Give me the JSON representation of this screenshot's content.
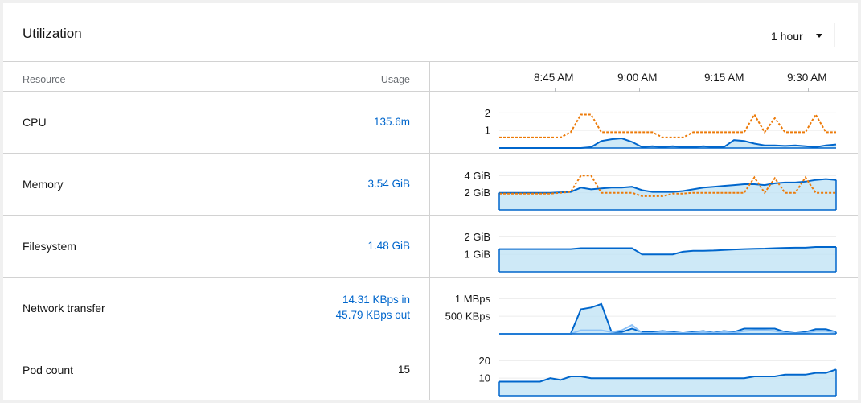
{
  "card": {
    "title": "Utilization",
    "duration": {
      "selected": "1 hour"
    }
  },
  "table": {
    "col_resource": "Resource",
    "col_usage": "Usage",
    "time_labels": [
      "8:45 AM",
      "9:00 AM",
      "9:15 AM",
      "9:30 AM"
    ]
  },
  "rows": [
    {
      "name": "CPU",
      "usage": "135.6m"
    },
    {
      "name": "Memory",
      "usage": "3.54 GiB"
    },
    {
      "name": "Filesystem",
      "usage": "1.48 GiB"
    },
    {
      "name": "Network transfer",
      "usage_in": "14.31 KBps in",
      "usage_out": "45.79 KBps out"
    },
    {
      "name": "Pod count",
      "usage": "15"
    }
  ],
  "colors": {
    "usage_line": "#0066cc",
    "usage_fill": "#bee1f4",
    "limit_line": "#ec7a08",
    "secondary_line": "#8bc1f7",
    "link": "#0066cc"
  },
  "chart_data": [
    {
      "type": "area",
      "id": "cpu",
      "yticks": [
        "1",
        "2"
      ],
      "ylim": [
        0,
        2.2
      ],
      "x": [
        "8:30",
        "8:33",
        "8:36",
        "8:38",
        "8:40",
        "8:41",
        "8:42",
        "8:44",
        "8:46",
        "8:48",
        "8:50",
        "8:52",
        "8:54",
        "8:56",
        "8:58",
        "9:00",
        "9:02",
        "9:04",
        "9:06",
        "9:08",
        "9:10",
        "9:12",
        "9:14",
        "9:16",
        "9:18",
        "9:20",
        "9:22",
        "9:24",
        "9:26",
        "9:28",
        "9:30",
        "9:32",
        "9:34",
        "9:36"
      ],
      "series": [
        {
          "role": "usage",
          "values": [
            0,
            0,
            0,
            0,
            0,
            0,
            0,
            0,
            0,
            0.05,
            0.4,
            0.5,
            0.55,
            0.35,
            0.05,
            0.1,
            0.05,
            0.1,
            0.05,
            0.05,
            0.1,
            0.05,
            0.05,
            0.45,
            0.4,
            0.25,
            0.15,
            0.15,
            0.12,
            0.15,
            0.1,
            0.05,
            0.15,
            0.2
          ]
        },
        {
          "role": "limit",
          "values": [
            0.6,
            0.6,
            0.6,
            0.6,
            0.6,
            0.6,
            0.6,
            0.9,
            1.9,
            1.9,
            0.9,
            0.9,
            0.9,
            0.9,
            0.9,
            0.9,
            0.6,
            0.6,
            0.6,
            0.9,
            0.9,
            0.9,
            0.9,
            0.9,
            0.9,
            1.9,
            0.9,
            1.7,
            0.9,
            0.9,
            0.9,
            1.9,
            0.9,
            0.9
          ]
        }
      ]
    },
    {
      "type": "area",
      "id": "memory",
      "yticks": [
        "2 GiB",
        "4 GiB"
      ],
      "ylim": [
        0,
        4.5
      ],
      "x": [
        "8:30",
        "8:33",
        "8:36",
        "8:38",
        "8:40",
        "8:41",
        "8:42",
        "8:44",
        "8:46",
        "8:48",
        "8:50",
        "8:52",
        "8:54",
        "8:56",
        "8:58",
        "9:00",
        "9:02",
        "9:04",
        "9:06",
        "9:08",
        "9:10",
        "9:12",
        "9:14",
        "9:16",
        "9:18",
        "9:20",
        "9:22",
        "9:24",
        "9:26",
        "9:28",
        "9:30",
        "9:32",
        "9:34",
        "9:36"
      ],
      "series": [
        {
          "role": "usage",
          "values": [
            2.0,
            2.0,
            2.0,
            2.0,
            2.0,
            2.0,
            2.05,
            2.1,
            2.6,
            2.4,
            2.5,
            2.6,
            2.6,
            2.7,
            2.3,
            2.1,
            2.1,
            2.1,
            2.2,
            2.4,
            2.6,
            2.7,
            2.8,
            2.9,
            3.0,
            3.0,
            2.9,
            3.1,
            3.2,
            3.2,
            3.3,
            3.5,
            3.6,
            3.5
          ]
        },
        {
          "role": "limit",
          "values": [
            1.9,
            1.9,
            1.9,
            1.9,
            1.9,
            1.9,
            2.0,
            2.1,
            4.0,
            4.0,
            2.0,
            2.0,
            2.0,
            2.0,
            1.6,
            1.6,
            1.6,
            1.9,
            1.9,
            2.0,
            2.0,
            2.0,
            2.0,
            2.0,
            2.0,
            3.8,
            2.0,
            3.7,
            2.0,
            2.0,
            3.8,
            2.0,
            2.0,
            2.0
          ]
        }
      ]
    },
    {
      "type": "area",
      "id": "filesystem",
      "yticks": [
        "1 GiB",
        "2 GiB"
      ],
      "ylim": [
        0,
        2.2
      ],
      "x": [
        "8:30",
        "8:33",
        "8:36",
        "8:38",
        "8:40",
        "8:41",
        "8:42",
        "8:44",
        "8:46",
        "8:48",
        "8:50",
        "8:52",
        "8:54",
        "8:56",
        "8:58",
        "9:00",
        "9:02",
        "9:04",
        "9:06",
        "9:08",
        "9:10",
        "9:12",
        "9:14",
        "9:16",
        "9:18",
        "9:20",
        "9:22",
        "9:24",
        "9:26",
        "9:28",
        "9:30",
        "9:32",
        "9:34",
        "9:36"
      ],
      "series": [
        {
          "role": "usage",
          "values": [
            1.3,
            1.3,
            1.3,
            1.3,
            1.3,
            1.3,
            1.3,
            1.3,
            1.35,
            1.35,
            1.35,
            1.35,
            1.35,
            1.35,
            1.0,
            1.0,
            1.0,
            1.0,
            1.15,
            1.2,
            1.2,
            1.22,
            1.25,
            1.28,
            1.3,
            1.32,
            1.33,
            1.35,
            1.37,
            1.38,
            1.38,
            1.42,
            1.42,
            1.42
          ]
        }
      ]
    },
    {
      "type": "area",
      "id": "network",
      "yticks": [
        "500 KBps",
        "1 MBps"
      ],
      "ylim": [
        0,
        1.1
      ],
      "x": [
        "8:30",
        "8:33",
        "8:36",
        "8:38",
        "8:40",
        "8:41",
        "8:42",
        "8:44",
        "8:46",
        "8:48",
        "8:50",
        "8:52",
        "8:54",
        "8:56",
        "8:58",
        "9:00",
        "9:02",
        "9:04",
        "9:06",
        "9:08",
        "9:10",
        "9:12",
        "9:14",
        "9:16",
        "9:18",
        "9:20",
        "9:22",
        "9:24",
        "9:26",
        "9:28",
        "9:30",
        "9:32",
        "9:34",
        "9:36"
      ],
      "series": [
        {
          "role": "out",
          "values": [
            0,
            0,
            0,
            0,
            0,
            0,
            0,
            0,
            0.7,
            0.75,
            0.85,
            0.05,
            0.05,
            0.15,
            0.05,
            0.05,
            0.08,
            0.05,
            0.02,
            0.05,
            0.08,
            0.03,
            0.08,
            0.05,
            0.15,
            0.15,
            0.15,
            0.15,
            0.05,
            0.02,
            0.05,
            0.13,
            0.13,
            0.05
          ]
        },
        {
          "role": "in",
          "values": [
            0,
            0,
            0,
            0,
            0,
            0,
            0,
            0,
            0.1,
            0.1,
            0.1,
            0.05,
            0.1,
            0.25,
            0.02,
            0.02,
            0.05,
            0.03,
            0.02,
            0.03,
            0.05,
            0.02,
            0.05,
            0.03,
            0.08,
            0.1,
            0.1,
            0.08,
            0.03,
            0.01,
            0.02,
            0.08,
            0.08,
            0.03
          ]
        }
      ]
    },
    {
      "type": "area",
      "id": "pods",
      "yticks": [
        "10",
        "20"
      ],
      "ylim": [
        0,
        22
      ],
      "x": [
        "8:30",
        "8:33",
        "8:36",
        "8:38",
        "8:40",
        "8:41",
        "8:42",
        "8:44",
        "8:46",
        "8:48",
        "8:50",
        "8:52",
        "8:54",
        "8:56",
        "8:58",
        "9:00",
        "9:02",
        "9:04",
        "9:06",
        "9:08",
        "9:10",
        "9:12",
        "9:14",
        "9:16",
        "9:18",
        "9:20",
        "9:22",
        "9:24",
        "9:26",
        "9:28",
        "9:30",
        "9:32",
        "9:34",
        "9:36"
      ],
      "series": [
        {
          "role": "usage",
          "values": [
            8,
            8,
            8,
            8,
            8,
            10,
            9,
            11,
            11,
            10,
            10,
            10,
            10,
            10,
            10,
            10,
            10,
            10,
            10,
            10,
            10,
            10,
            10,
            10,
            10,
            11,
            11,
            11,
            12,
            12,
            12,
            13,
            13,
            15
          ]
        }
      ]
    }
  ]
}
